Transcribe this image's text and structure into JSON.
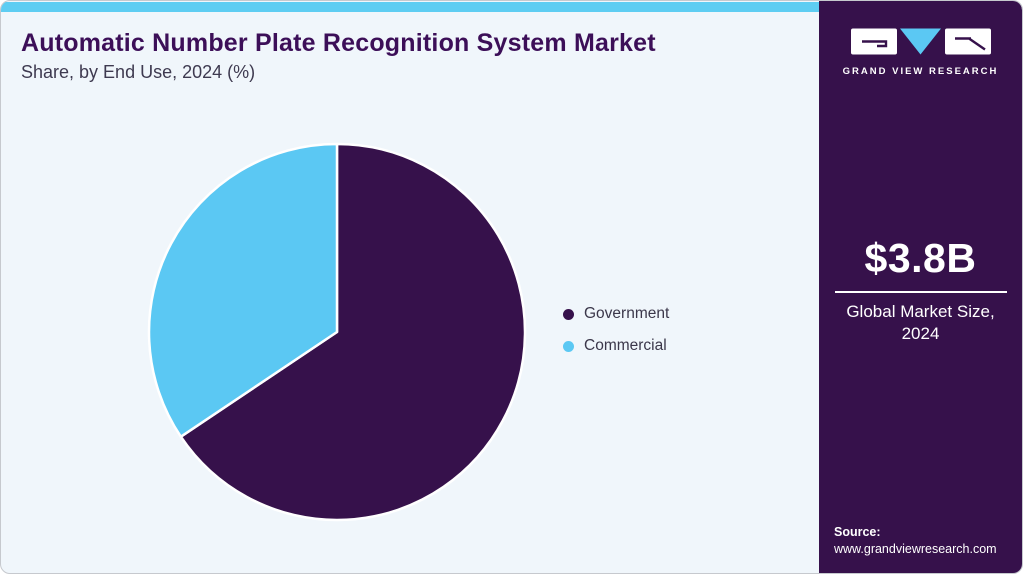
{
  "page": {
    "title": "Automatic Number Plate Recognition System Market",
    "subtitle": "Share, by End Use, 2024 (%)"
  },
  "chart_data": {
    "type": "pie",
    "title": "Automatic Number Plate Recognition System Market Share, by End Use, 2024 (%)",
    "categories": [
      "Government",
      "Commercial"
    ],
    "values": [
      65.6,
      34.4
    ],
    "unit": "%",
    "colors": [
      "#36114b",
      "#5bc8f3"
    ],
    "start_angle_deg": 0,
    "direction": "clockwise",
    "legend_position": "right",
    "data_labels_shown": false
  },
  "legend": {
    "items": [
      {
        "label": "Government",
        "color": "#36114b"
      },
      {
        "label": "Commercial",
        "color": "#5bc8f3"
      }
    ]
  },
  "sidebar": {
    "brand": "GRAND VIEW RESEARCH",
    "stat_value": "$3.8B",
    "stat_label": "Global Market Size, 2024",
    "source_label": "Source:",
    "source_url": "www.grandviewresearch.com"
  },
  "colors": {
    "accent_bar": "#5ecdf2",
    "sidebar_bg": "#36114b",
    "main_bg": "#f0f6fb",
    "title_text": "#3c0f58",
    "subtitle_text": "#3e3a50",
    "legend_text": "#3b374a",
    "logo_triangle": "#5bc8f3",
    "logo_glyph": "#36114b"
  }
}
